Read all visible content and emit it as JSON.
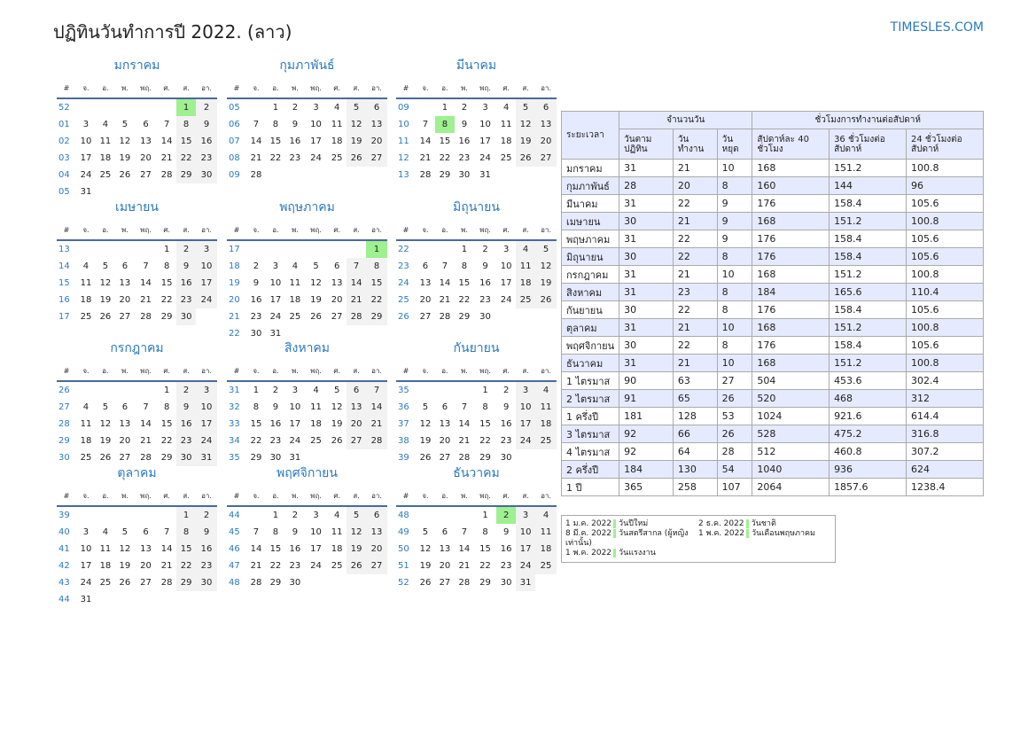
{
  "header": {
    "title": "ปฏิทินวันทำการปี 2022. (ลาว)",
    "brand": "TIMESLES.COM"
  },
  "weekdays": [
    "#",
    "จ.",
    "อ.",
    "พ.",
    "พฤ.",
    "ศ.",
    "ส.",
    "อา."
  ],
  "colors": {
    "accent": "#2a7ac0",
    "holiday": "#9ef090",
    "weekend": "#f2f2f2",
    "table_header": "#e6eaff"
  },
  "months": [
    {
      "name": "มกราคม",
      "first_weekday": 5,
      "days": 31,
      "weeks": [
        "52",
        "01",
        "02",
        "03",
        "04",
        "05"
      ],
      "holidays": [
        1
      ]
    },
    {
      "name": "กุมภาพันธ์",
      "first_weekday": 1,
      "days": 28,
      "weeks": [
        "05",
        "06",
        "07",
        "08",
        "09"
      ],
      "holidays": []
    },
    {
      "name": "มีนาคม",
      "first_weekday": 1,
      "days": 31,
      "weeks": [
        "09",
        "10",
        "11",
        "12",
        "13"
      ],
      "holidays": [
        8
      ]
    },
    {
      "name": "เมษายน",
      "first_weekday": 4,
      "days": 30,
      "weeks": [
        "13",
        "14",
        "15",
        "16",
        "17"
      ],
      "holidays": []
    },
    {
      "name": "พฤษภาคม",
      "first_weekday": 6,
      "days": 31,
      "weeks": [
        "17",
        "18",
        "19",
        "20",
        "21",
        "22"
      ],
      "holidays": [
        1
      ]
    },
    {
      "name": "มิถุนายน",
      "first_weekday": 2,
      "days": 30,
      "weeks": [
        "22",
        "23",
        "24",
        "25",
        "26"
      ],
      "holidays": []
    },
    {
      "name": "กรกฎาคม",
      "first_weekday": 4,
      "days": 31,
      "weeks": [
        "26",
        "27",
        "28",
        "29",
        "30"
      ],
      "holidays": []
    },
    {
      "name": "สิงหาคม",
      "first_weekday": 0,
      "days": 31,
      "weeks": [
        "31",
        "32",
        "33",
        "34",
        "35"
      ],
      "holidays": []
    },
    {
      "name": "กันยายน",
      "first_weekday": 3,
      "days": 30,
      "weeks": [
        "35",
        "36",
        "37",
        "38",
        "39"
      ],
      "holidays": []
    },
    {
      "name": "ตุลาคม",
      "first_weekday": 5,
      "days": 31,
      "weeks": [
        "39",
        "40",
        "41",
        "42",
        "43",
        "44"
      ],
      "holidays": []
    },
    {
      "name": "พฤศจิกายน",
      "first_weekday": 1,
      "days": 30,
      "weeks": [
        "44",
        "45",
        "46",
        "47",
        "48"
      ],
      "holidays": []
    },
    {
      "name": "ธันวาคม",
      "first_weekday": 3,
      "days": 31,
      "weeks": [
        "48",
        "49",
        "50",
        "51",
        "52"
      ],
      "holidays": [
        2
      ]
    }
  ],
  "summary": {
    "h_period": "ระยะเวลา",
    "h_days": "จำนวนวัน",
    "h_hours": "ชั่วโมงการทำงานต่อสัปดาห์",
    "cols": [
      "วันตามปฏิทิน",
      "วันทำงาน",
      "วันหยุด",
      "สัปดาห์ละ 40 ชั่วโมง",
      "36 ชั่วโมงต่อสัปดาห์",
      "24 ชั่วโมงต่อสัปดาห์"
    ],
    "rows": [
      [
        "มกราคม",
        "31",
        "21",
        "10",
        "168",
        "151.2",
        "100.8"
      ],
      [
        "กุมภาพันธ์",
        "28",
        "20",
        "8",
        "160",
        "144",
        "96"
      ],
      [
        "มีนาคม",
        "31",
        "22",
        "9",
        "176",
        "158.4",
        "105.6"
      ],
      [
        "เมษายน",
        "30",
        "21",
        "9",
        "168",
        "151.2",
        "100.8"
      ],
      [
        "พฤษภาคม",
        "31",
        "22",
        "9",
        "176",
        "158.4",
        "105.6"
      ],
      [
        "มิถุนายน",
        "30",
        "22",
        "8",
        "176",
        "158.4",
        "105.6"
      ],
      [
        "กรกฎาคม",
        "31",
        "21",
        "10",
        "168",
        "151.2",
        "100.8"
      ],
      [
        "สิงหาคม",
        "31",
        "23",
        "8",
        "184",
        "165.6",
        "110.4"
      ],
      [
        "กันยายน",
        "30",
        "22",
        "8",
        "176",
        "158.4",
        "105.6"
      ],
      [
        "ตุลาคม",
        "31",
        "21",
        "10",
        "168",
        "151.2",
        "100.8"
      ],
      [
        "พฤศจิกายน",
        "30",
        "22",
        "8",
        "176",
        "158.4",
        "105.6"
      ],
      [
        "ธันวาคม",
        "31",
        "21",
        "10",
        "168",
        "151.2",
        "100.8"
      ],
      [
        "1 ไตรมาส",
        "90",
        "63",
        "27",
        "504",
        "453.6",
        "302.4"
      ],
      [
        "2 ไตรมาส",
        "91",
        "65",
        "26",
        "520",
        "468",
        "312"
      ],
      [
        "1 ครึ่งปี",
        "181",
        "128",
        "53",
        "1024",
        "921.6",
        "614.4"
      ],
      [
        "3 ไตรมาส",
        "92",
        "66",
        "26",
        "528",
        "475.2",
        "316.8"
      ],
      [
        "4 ไตรมาส",
        "92",
        "64",
        "28",
        "512",
        "460.8",
        "307.2"
      ],
      [
        "2 ครึ่งปี",
        "184",
        "130",
        "54",
        "1040",
        "936",
        "624"
      ],
      [
        "1 ปี",
        "365",
        "258",
        "107",
        "2064",
        "1857.6",
        "1238.4"
      ]
    ]
  },
  "legend": [
    {
      "date": "1 ม.ค. 2022",
      "name": "วันปีใหม่"
    },
    {
      "date": "2 ธ.ค. 2022",
      "name": "วันชาติ"
    },
    {
      "date": "8 มี.ค. 2022",
      "name": "วันสตรีสากล (ผู้หญิงเท่านั้น)"
    },
    {
      "date": "1 พ.ค. 2022",
      "name": "วันเดือนพฤษภาคม"
    },
    {
      "date": "1 พ.ค. 2022",
      "name": "วันแรงงาน"
    }
  ]
}
